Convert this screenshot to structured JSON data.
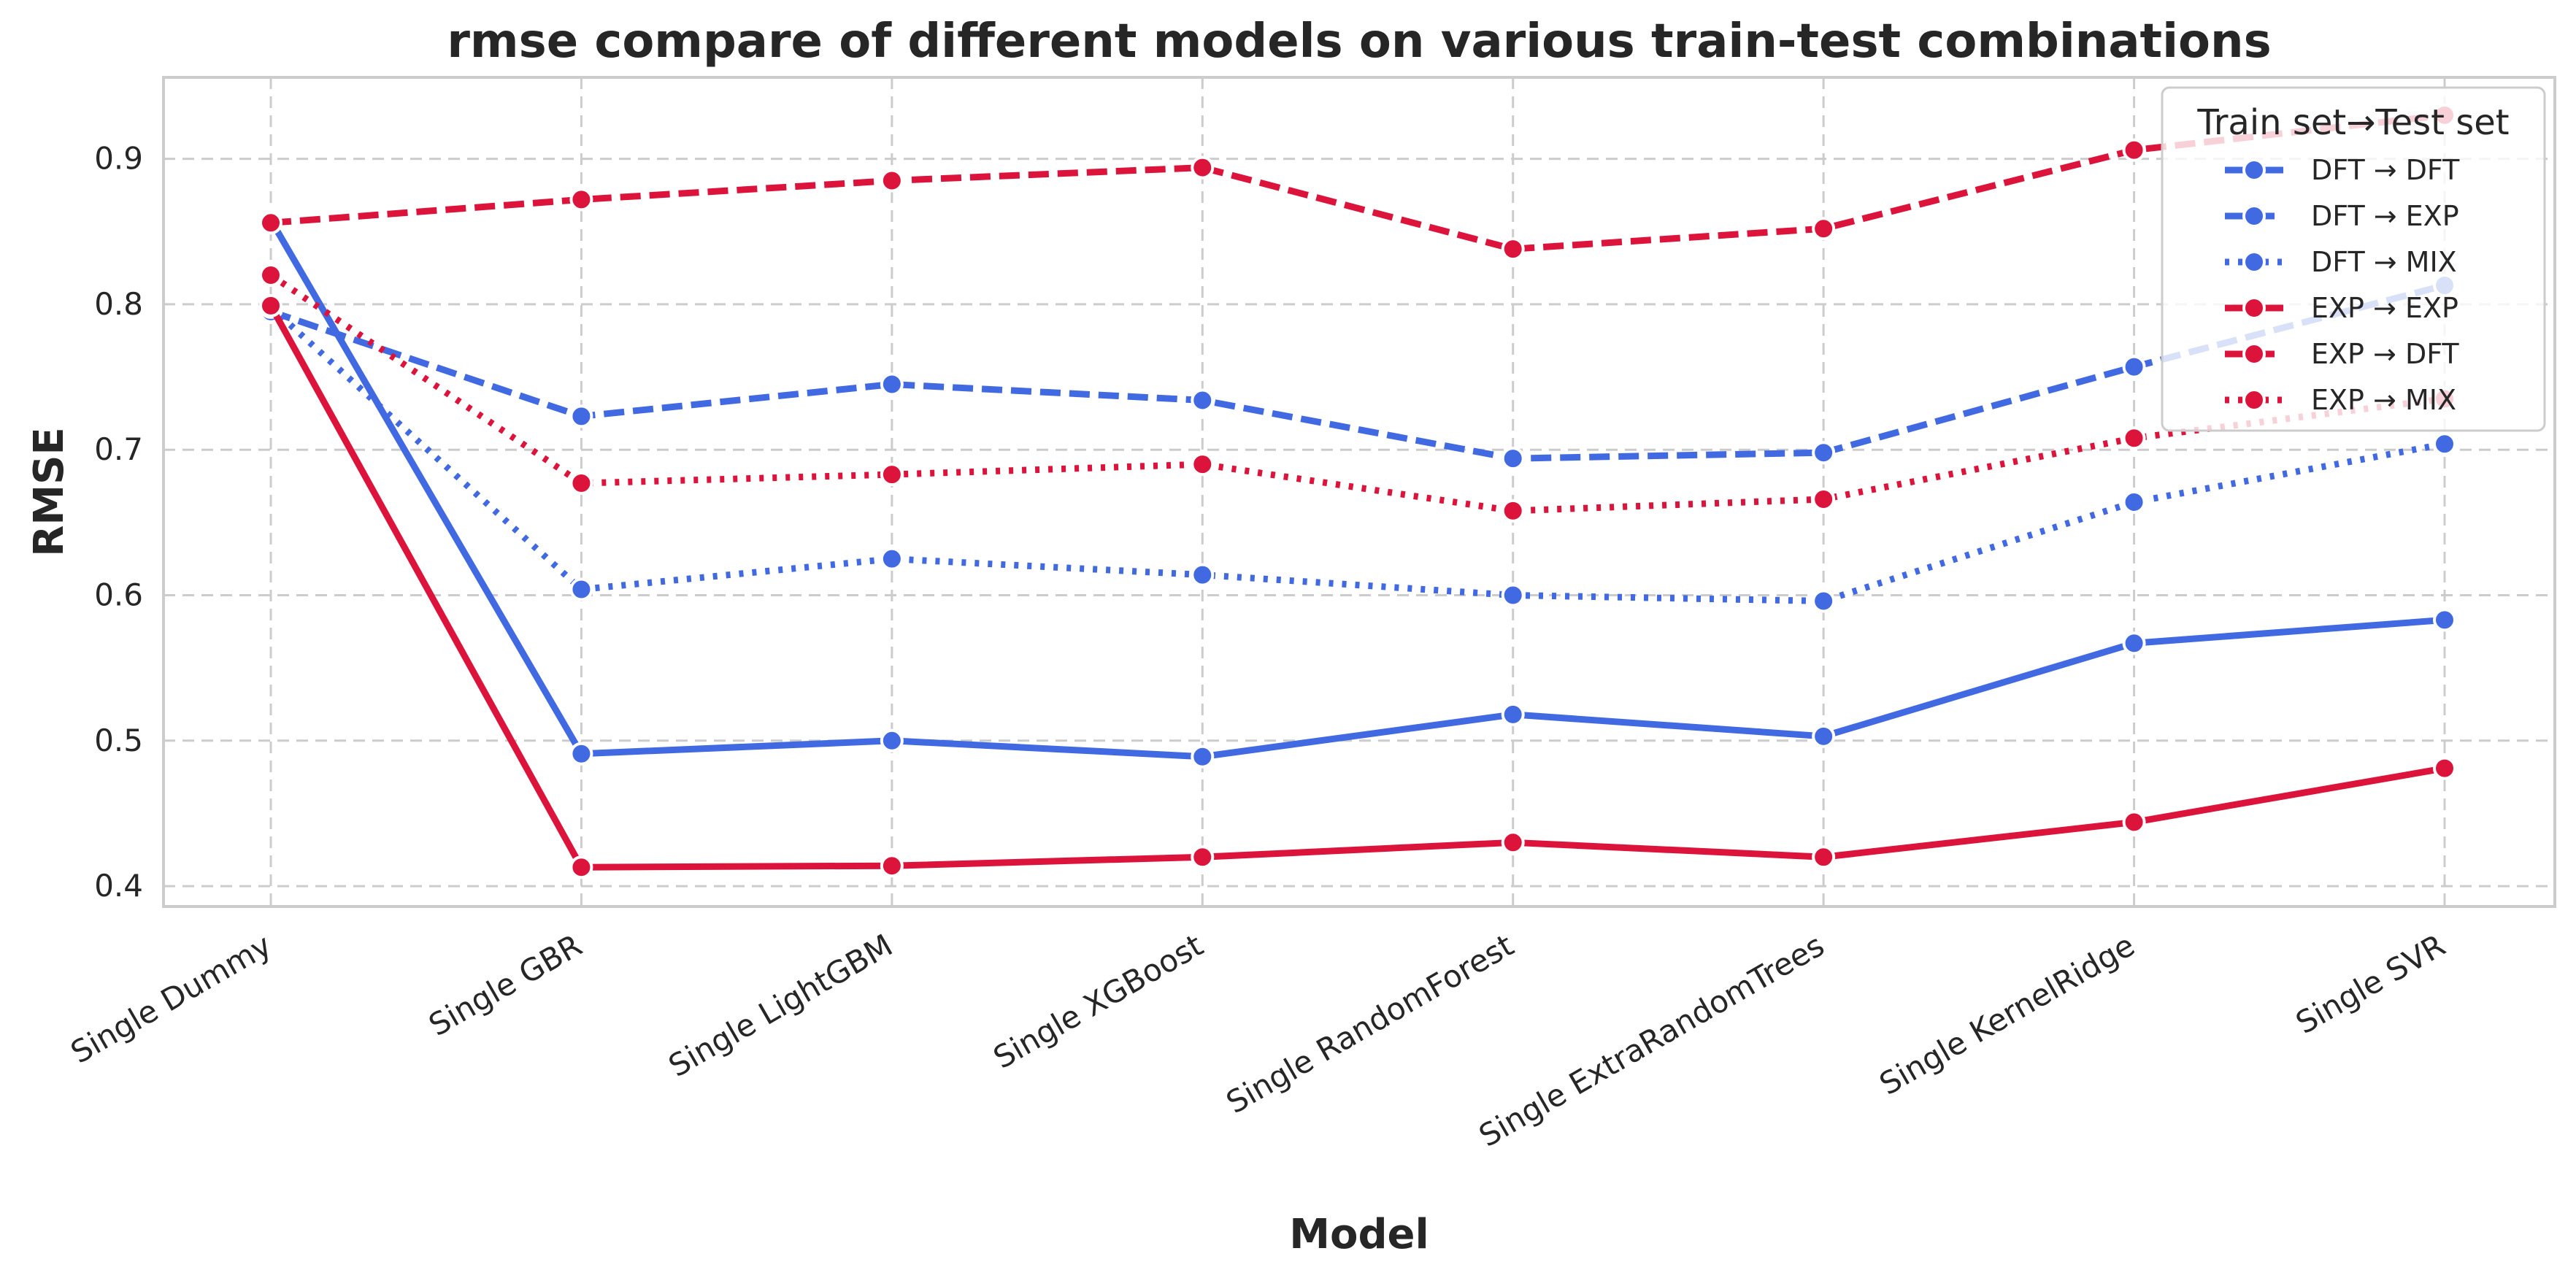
{
  "chart_data": {
    "type": "line",
    "title": "rmse compare of different models on various train-test combinations",
    "xlabel": "Model",
    "ylabel": "RMSE",
    "categories": [
      "Single Dummy",
      "Single GBR",
      "Single LightGBM",
      "Single XGBoost",
      "Single RandomForest",
      "Single ExtraRandomTrees",
      "Single KernelRidge",
      "Single SVR"
    ],
    "yticks": [
      "0.4",
      "0.5",
      "0.6",
      "0.7",
      "0.8",
      "0.9"
    ],
    "ylim": [
      0.386,
      0.956
    ],
    "grid": true,
    "legend": {
      "title": "Train set→Test set",
      "placement": "top-right"
    },
    "series": [
      {
        "name": "DFT → DFT",
        "color": "#4169E1",
        "dash": "solid",
        "values": [
          0.858,
          0.491,
          0.5,
          0.489,
          0.518,
          0.503,
          0.567,
          0.583
        ]
      },
      {
        "name": "DFT → EXP",
        "color": "#4169E1",
        "dash": "dashed",
        "values": [
          0.795,
          0.723,
          0.745,
          0.734,
          0.694,
          0.698,
          0.757,
          0.813
        ]
      },
      {
        "name": "DFT → MIX",
        "color": "#4169E1",
        "dash": "dotted",
        "values": [
          0.798,
          0.604,
          0.625,
          0.614,
          0.6,
          0.596,
          0.664,
          0.704
        ]
      },
      {
        "name": "EXP → EXP",
        "color": "#DC143C",
        "dash": "solid",
        "values": [
          0.799,
          0.413,
          0.414,
          0.42,
          0.43,
          0.42,
          0.444,
          0.481
        ]
      },
      {
        "name": "EXP → DFT",
        "color": "#DC143C",
        "dash": "dashed",
        "values": [
          0.856,
          0.872,
          0.885,
          0.894,
          0.838,
          0.852,
          0.906,
          0.93
        ]
      },
      {
        "name": "EXP → MIX",
        "color": "#DC143C",
        "dash": "dotted",
        "values": [
          0.82,
          0.677,
          0.683,
          0.69,
          0.658,
          0.666,
          0.708,
          0.735
        ]
      }
    ]
  }
}
